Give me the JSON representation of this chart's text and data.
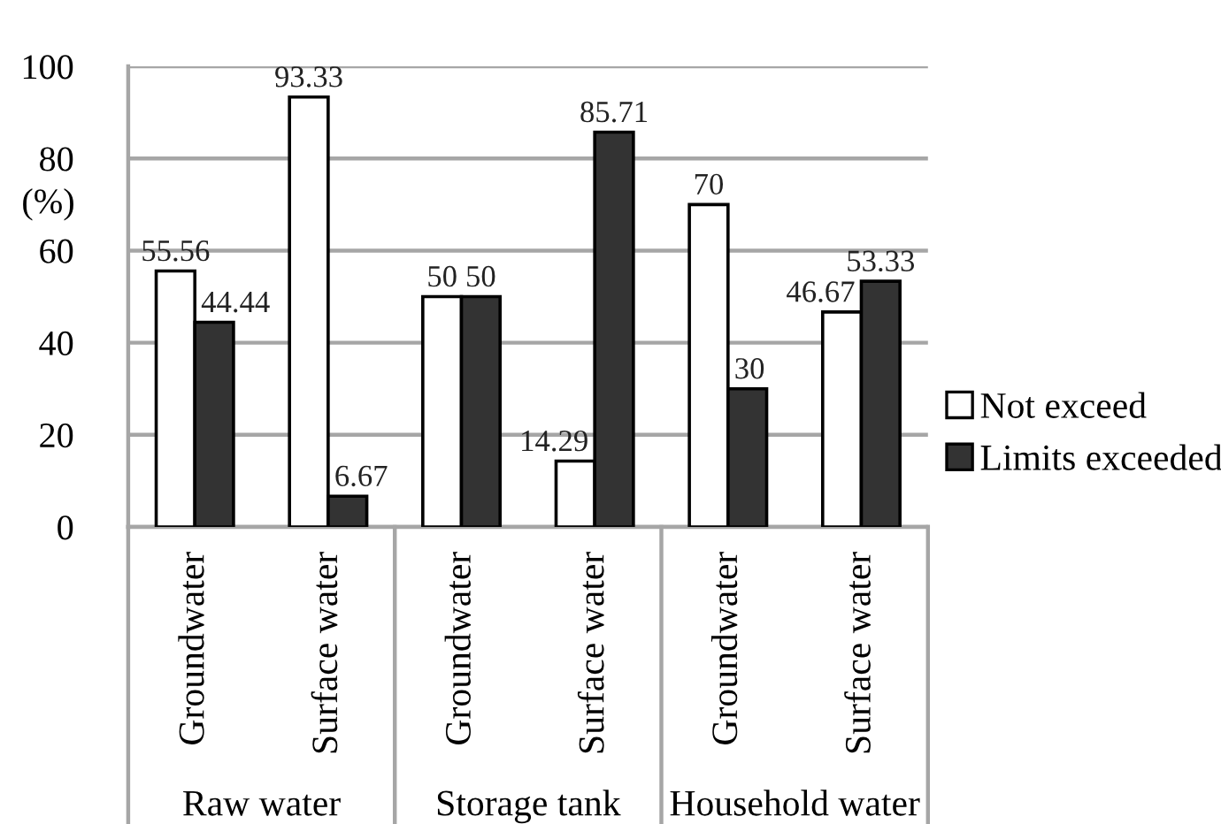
{
  "chart_data": {
    "type": "bar",
    "categories": [
      "Groundwater",
      "Surface water",
      "Groundwater",
      "Surface water",
      "Groundwater",
      "Surface water"
    ],
    "series": [
      {
        "name": "Not exceed",
        "color": "#ffffff",
        "values": [
          55.56,
          93.33,
          50,
          14.29,
          70,
          46.67
        ]
      },
      {
        "name": "Limits exceeded",
        "color": "#333333",
        "values": [
          44.44,
          6.67,
          50,
          85.71,
          30,
          53.33
        ]
      }
    ],
    "ylabel": "(%)",
    "ylim": [
      0,
      100
    ],
    "yticks": [
      0,
      20,
      40,
      60,
      80,
      100
    ],
    "grid": "y",
    "legend": "right",
    "data_labels": true,
    "annotations": [
      "Raw water",
      "Storage tank",
      "Household water"
    ]
  }
}
